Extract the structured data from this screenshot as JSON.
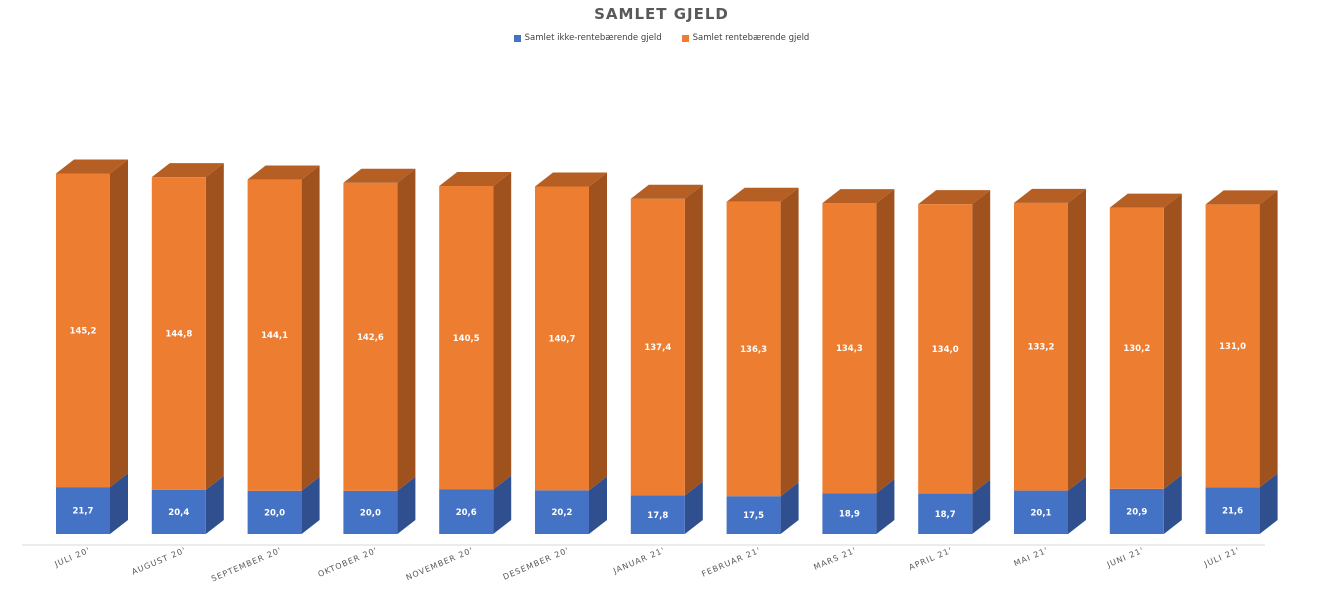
{
  "chart_data": {
    "type": "bar",
    "stacked": true,
    "style": "3d",
    "title": "SAMLET GJELD",
    "categories": [
      "JULI 20'",
      "AUGUST 20'",
      "SEPTEMBER 20'",
      "OKTOBER 20'",
      "NOVEMBER 20'",
      "DESEMBER 20'",
      "JANUAR 21'",
      "FEBRUAR 21'",
      "MARS 21'",
      "APRIL 21'",
      "MAI 21'",
      "JUNI 21'",
      "JULI 21'"
    ],
    "series": [
      {
        "name": "Samlet ikke-rentebærende gjeld",
        "color": "#4472C4",
        "values": [
          21.7,
          20.4,
          20.0,
          20.0,
          20.6,
          20.2,
          17.8,
          17.5,
          18.9,
          18.7,
          20.1,
          20.9,
          21.6
        ],
        "labels": [
          "21,7",
          "20,4",
          "20,0",
          "20,0",
          "20,6",
          "20,2",
          "17,8",
          "17,5",
          "18,9",
          "18,7",
          "20,1",
          "20,9",
          "21,6"
        ]
      },
      {
        "name": "Samlet rentebærende gjeld",
        "color": "#ED7D31",
        "values": [
          145.2,
          144.8,
          144.1,
          142.6,
          140.5,
          140.7,
          137.4,
          136.3,
          134.3,
          134.0,
          133.2,
          130.2,
          131.0
        ],
        "labels": [
          "145,2",
          "144,8",
          "144,1",
          "142,6",
          "140,5",
          "140,7",
          "137,4",
          "136,3",
          "134,3",
          "134,0",
          "133,2",
          "130,2",
          "131,0"
        ]
      }
    ],
    "legend_position": "top-center",
    "grid": false
  }
}
